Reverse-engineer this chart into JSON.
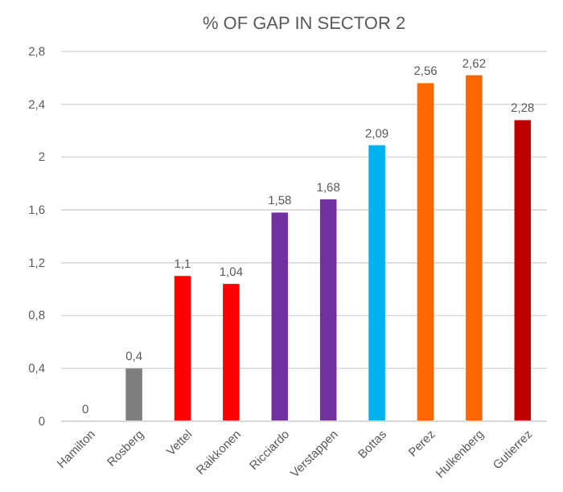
{
  "chart_data": {
    "type": "bar",
    "title": "% OF GAP IN SECTOR 2",
    "categories": [
      "Hamilton",
      "Rosberg",
      "Vettel",
      "Raikkonen",
      "Ricciardo",
      "Verstappen",
      "Bottas",
      "Perez",
      "Hulkenberg",
      "Gutierrez"
    ],
    "values": [
      0,
      0.4,
      1.1,
      1.04,
      1.58,
      1.68,
      2.09,
      2.56,
      2.62,
      2.28
    ],
    "value_labels": [
      "0",
      "0,4",
      "1,1",
      "1,04",
      "1,58",
      "1,68",
      "2,09",
      "2,56",
      "2,62",
      "2,28"
    ],
    "colors": [
      "#7f7f7f",
      "#7f7f7f",
      "#ff0000",
      "#ff0000",
      "#7030a0",
      "#7030a0",
      "#00b0f0",
      "#ff6600",
      "#ff6600",
      "#c00000"
    ],
    "ylim": [
      0,
      2.8
    ],
    "yticks": [
      0,
      {
        "value": 0.4,
        "label": "0,4"
      },
      {
        "value": 0.8,
        "label": "0,8"
      },
      {
        "value": 1.2,
        "label": "1,2"
      },
      {
        "value": 1.6,
        "label": "1,6"
      },
      2,
      {
        "value": 2.4,
        "label": "2,4"
      },
      {
        "value": 2.8,
        "label": "2,8"
      }
    ],
    "grid": "y"
  }
}
